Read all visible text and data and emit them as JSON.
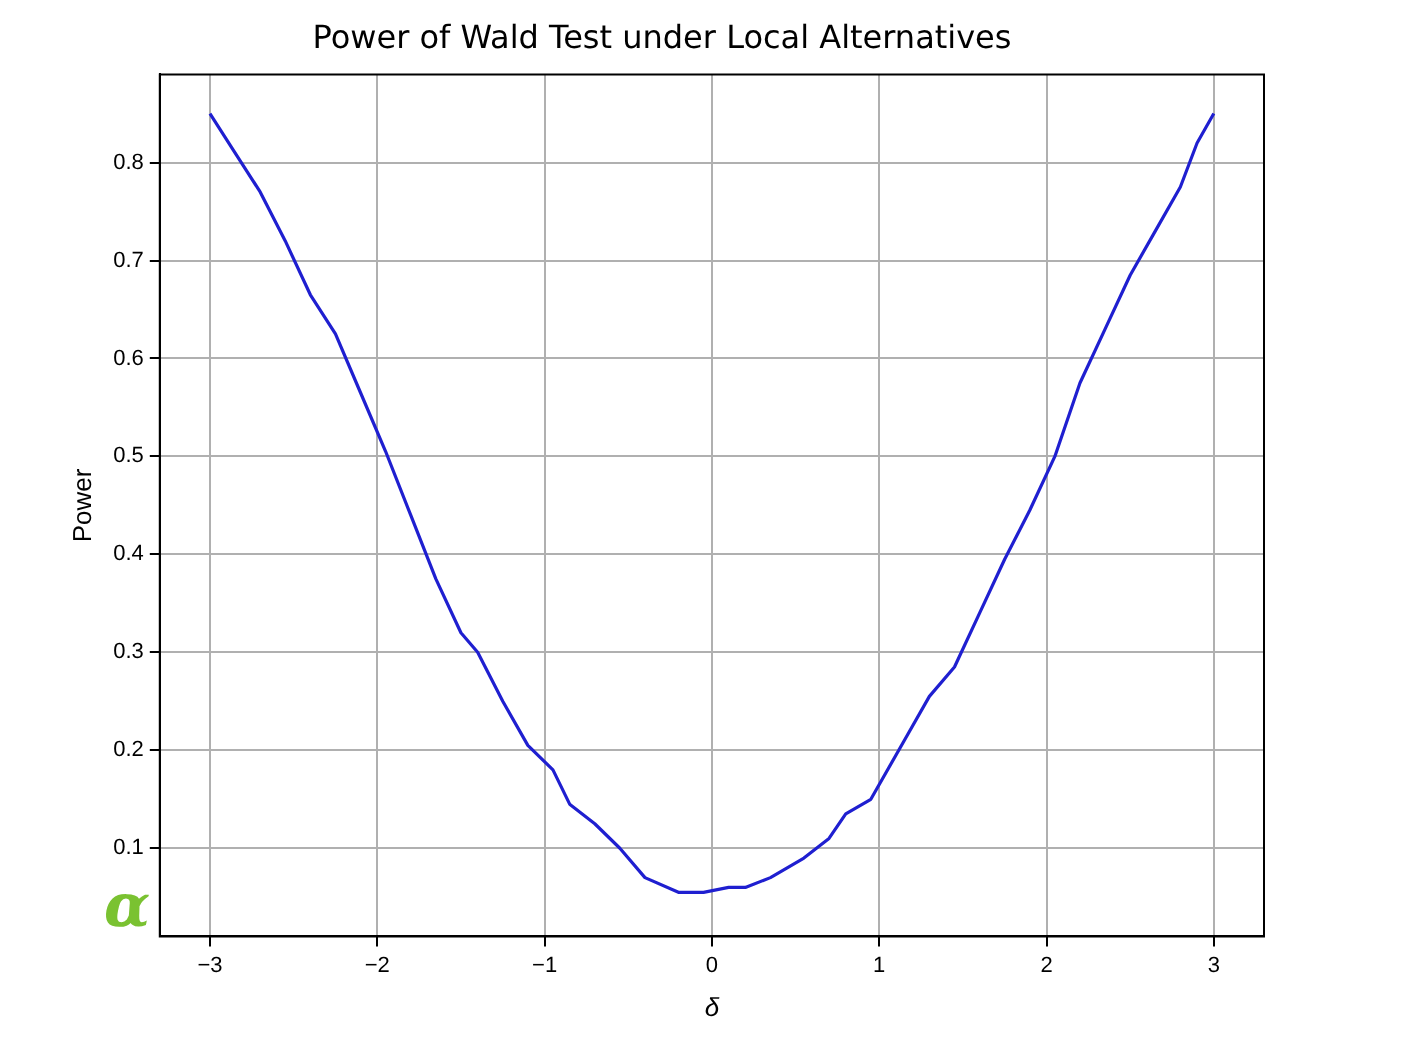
{
  "chart_data": {
    "type": "line",
    "title": "Power of Wald Test under Local Alternatives",
    "xlabel": "δ",
    "ylabel": "Power",
    "annotations": [
      "α"
    ],
    "x": [
      -3,
      -2.85,
      -2.7,
      -2.55,
      -2.4,
      -2.25,
      -2.1,
      -1.95,
      -1.8,
      -1.65,
      -1.5,
      -1.4,
      -1.25,
      -1.1,
      -0.95,
      -0.85,
      -0.7,
      -0.55,
      -0.4,
      -0.2,
      -0.05,
      0.1,
      0.2,
      0.35,
      0.55,
      0.7,
      0.8,
      0.95,
      1.15,
      1.3,
      1.45,
      1.6,
      1.75,
      1.9,
      2.05,
      2.2,
      2.35,
      2.5,
      2.65,
      2.8,
      2.9,
      3
    ],
    "series": [
      {
        "color": "#1f1fd0",
        "values": [
          0.85,
          0.81,
          0.77,
          0.72,
          0.665,
          0.625,
          0.565,
          0.505,
          0.44,
          0.375,
          0.32,
          0.3,
          0.25,
          0.205,
          0.18,
          0.145,
          0.125,
          0.1,
          0.07,
          0.055,
          0.055,
          0.06,
          0.06,
          0.07,
          0.09,
          0.11,
          0.135,
          0.15,
          0.21,
          0.255,
          0.285,
          0.34,
          0.395,
          0.445,
          0.5,
          0.575,
          0.63,
          0.685,
          0.73,
          0.775,
          0.82,
          0.85
        ]
      }
    ],
    "xlim": [
      -3.3,
      3.3
    ],
    "ylim": [
      0.01,
      0.89
    ],
    "xticks": [
      {
        "value": -3,
        "label": "−3"
      },
      {
        "value": -2,
        "label": "−2"
      },
      {
        "value": -1,
        "label": "−1"
      },
      0,
      1,
      2,
      3
    ],
    "yticks": [
      0.1,
      0.2,
      0.3,
      0.4,
      0.5,
      0.6,
      0.7,
      0.8
    ],
    "grid": true,
    "legend": false,
    "marker": "none",
    "line_style": "solid"
  }
}
